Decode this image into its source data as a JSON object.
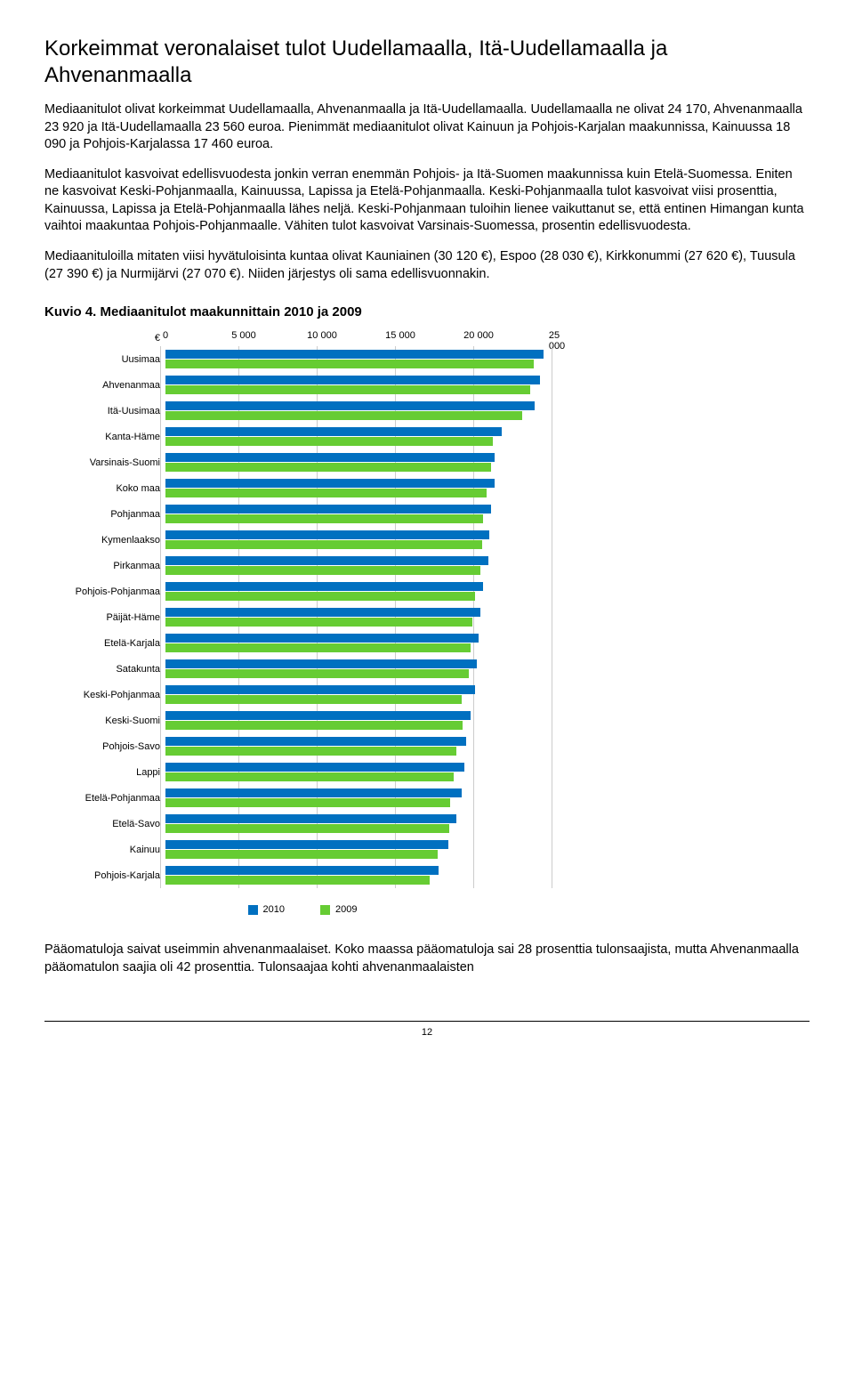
{
  "title": "Korkeimmat veronalaiset tulot Uudellamaalla, Itä-Uudellamaalla ja Ahvenanmaalla",
  "p1": "Mediaanitulot olivat korkeimmat Uudellamaalla, Ahvenanmaalla ja Itä-Uudellamaalla. Uudellamaalla ne olivat 24 170, Ahvenanmaalla 23 920 ja Itä-Uudellamaalla 23 560 euroa. Pienimmät mediaanitulot olivat Kainuun ja Pohjois-Karjalan maakunnissa, Kainuussa 18 090 ja Pohjois-Karjalassa 17 460 euroa.",
  "p2": "Mediaanitulot kasvoivat edellisvuodesta jonkin verran enemmän Pohjois- ja Itä-Suomen maakunnissa kuin Etelä-Suomessa. Eniten ne kasvoivat Keski-Pohjanmaalla, Kainuussa, Lapissa ja Etelä-Pohjanmaalla. Keski-Pohjanmaalla tulot kasvoivat viisi prosenttia, Kainuussa, Lapissa ja Etelä-Pohjanmaalla lähes neljä. Keski-Pohjanmaan tuloihin lienee vaikuttanut se, että entinen Himangan kunta vaihtoi maakuntaa Pohjois-Pohjanmaalle. Vähiten tulot kasvoivat Varsinais-Suomessa, prosentin edellisvuodesta.",
  "p3": "Mediaanituloilla mitaten viisi hyvätuloisinta kuntaa olivat Kauniainen (30 120 €), Espoo (28 030 €), Kirkkonummi (27 620 €), Tuusula (27 390 €) ja Nurmijärvi (27 070 €). Niiden järjestys oli sama edellisvuonnakin.",
  "figure_caption": "Kuvio 4. Mediaanitulot maakunnittain 2010 ja 2009",
  "chart": {
    "type": "bar",
    "orientation": "horizontal",
    "xlim": [
      0,
      25000
    ],
    "xticks": [
      0,
      5000,
      10000,
      15000,
      20000,
      25000
    ],
    "xtick_labels": [
      "0",
      "5 000",
      "10 000",
      "15 000",
      "20 000",
      "25 000"
    ],
    "euro_symbol": "€",
    "series": [
      {
        "name": "2010",
        "color": "#0070c0"
      },
      {
        "name": "2009",
        "color": "#66cc33"
      }
    ],
    "categories": [
      {
        "label": "Uusimaa",
        "v2010": 24170,
        "v2009": 23500
      },
      {
        "label": "Ahvenanmaa",
        "v2010": 23920,
        "v2009": 23300
      },
      {
        "label": "Itä-Uusimaa",
        "v2010": 23560,
        "v2009": 22800
      },
      {
        "label": "Kanta-Häme",
        "v2010": 21500,
        "v2009": 20900
      },
      {
        "label": "Varsinais-Suomi",
        "v2010": 21000,
        "v2009": 20800
      },
      {
        "label": "Koko maa",
        "v2010": 21000,
        "v2009": 20500
      },
      {
        "label": "Pohjanmaa",
        "v2010": 20800,
        "v2009": 20300
      },
      {
        "label": "Kymenlaakso",
        "v2010": 20700,
        "v2009": 20200
      },
      {
        "label": "Pirkanmaa",
        "v2010": 20600,
        "v2009": 20100
      },
      {
        "label": "Pohjois-Pohjanmaa",
        "v2010": 20300,
        "v2009": 19800
      },
      {
        "label": "Päijät-Häme",
        "v2010": 20100,
        "v2009": 19600
      },
      {
        "label": "Etelä-Karjala",
        "v2010": 20000,
        "v2009": 19500
      },
      {
        "label": "Satakunta",
        "v2010": 19900,
        "v2009": 19400
      },
      {
        "label": "Keski-Pohjanmaa",
        "v2010": 19800,
        "v2009": 18900
      },
      {
        "label": "Keski-Suomi",
        "v2010": 19500,
        "v2009": 19000
      },
      {
        "label": "Pohjois-Savo",
        "v2010": 19200,
        "v2009": 18600
      },
      {
        "label": "Lappi",
        "v2010": 19100,
        "v2009": 18400
      },
      {
        "label": "Etelä-Pohjanmaa",
        "v2010": 18900,
        "v2009": 18200
      },
      {
        "label": "Etelä-Savo",
        "v2010": 18600,
        "v2009": 18100
      },
      {
        "label": "Kainuu",
        "v2010": 18090,
        "v2009": 17400
      },
      {
        "label": "Pohjois-Karjala",
        "v2010": 17460,
        "v2009": 16900
      }
    ],
    "grid_color": "#cccccc",
    "background_color": "#ffffff",
    "label_fontsize": 11
  },
  "p4": "Pääomatuloja saivat useimmin ahvenanmaalaiset. Koko maassa pääomatuloja sai 28 prosenttia tulonsaajista, mutta Ahvenanmaalla pääomatulon saajia oli 42 prosenttia. Tulonsaajaa kohti ahvenanmaalaisten",
  "page_number": "12"
}
